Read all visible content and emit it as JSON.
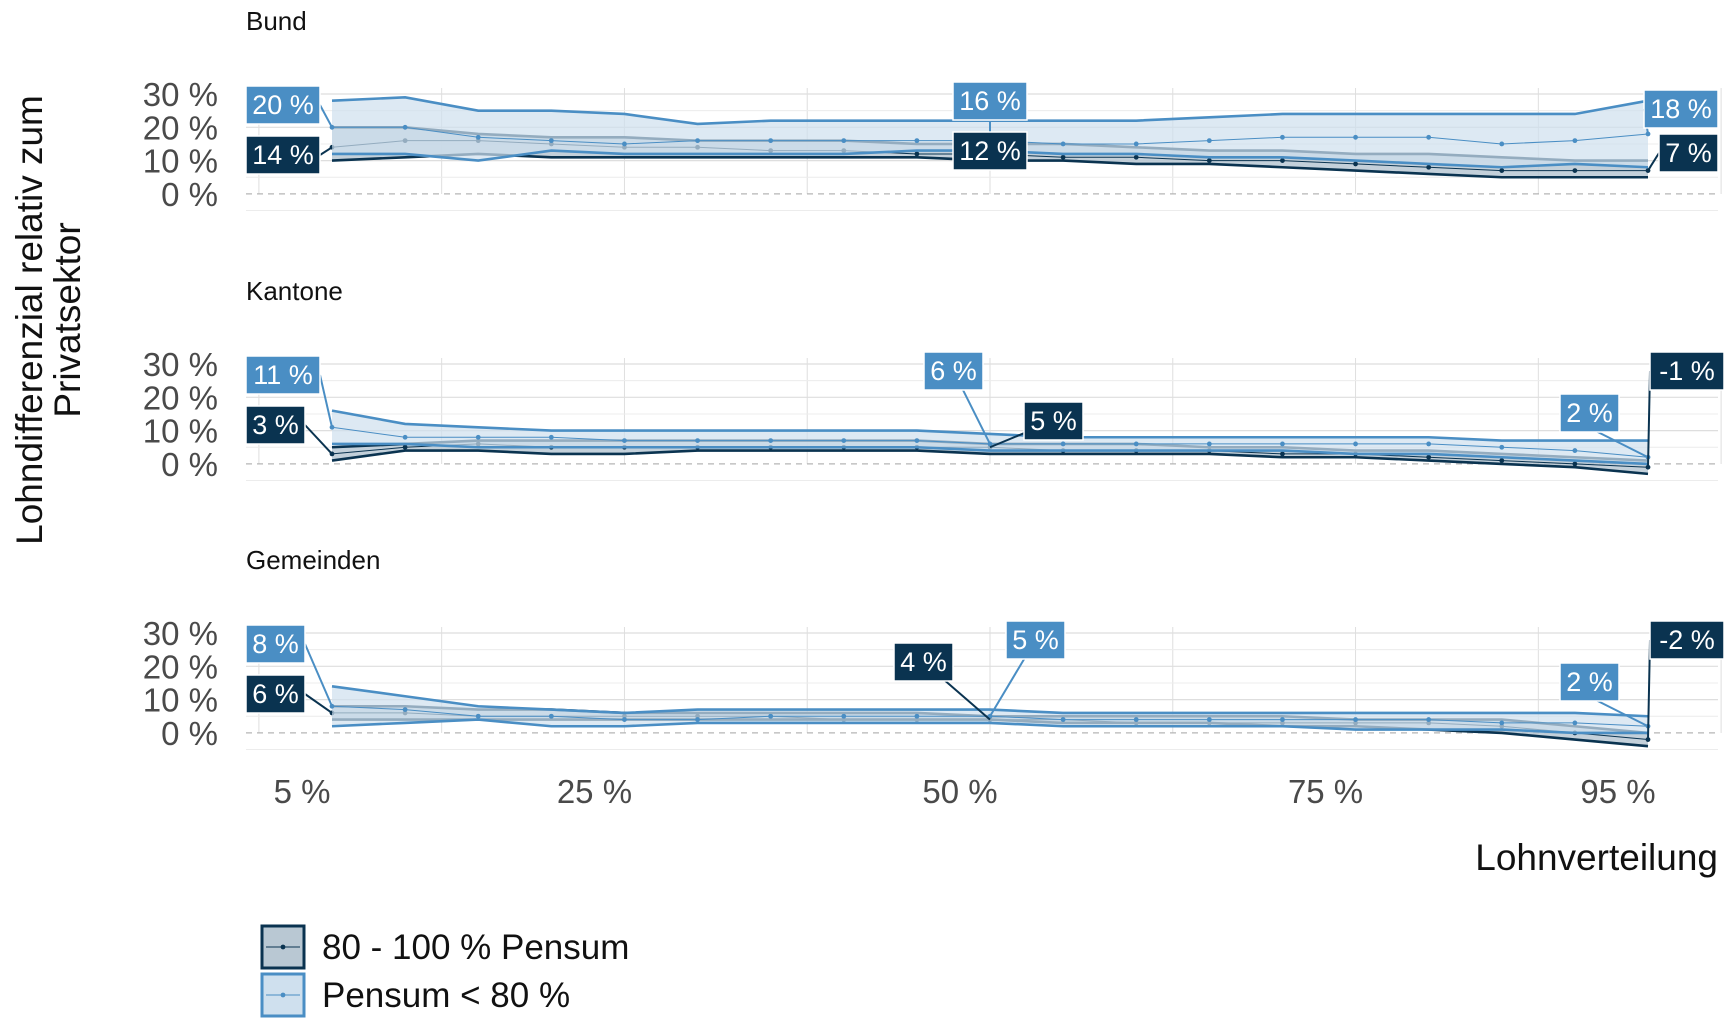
{
  "colors": {
    "full": "#0a3350",
    "full_fill": "#b9c8d3",
    "part": "#4a8ec4",
    "part_fill": "#cfe0ee",
    "grid": "#dedede",
    "zero_line": "#b5b5b5"
  },
  "chart_data": {
    "type": "area",
    "xlabel": "Lohnverteilung",
    "ylabel": "Lohndifferenzial relativ zum Privatsektor",
    "ylabel_lines": [
      "Lohndifferenzial relativ zum",
      "Privatsektor"
    ],
    "x_ticks": [
      5,
      25,
      50,
      75,
      95
    ],
    "x_tick_labels": [
      "5 %",
      "25 %",
      "50 %",
      "75 %",
      "95 %"
    ],
    "x_range": [
      0,
      100
    ],
    "y_ticks": [
      0,
      10,
      20,
      30
    ],
    "y_tick_labels": [
      "0 %",
      "10 %",
      "20 %",
      "30 %"
    ],
    "ylim": [
      -5,
      30
    ],
    "grid": true,
    "legend_position": "bottom-left",
    "legend": [
      {
        "key": "full",
        "label": "80 - 100 % Pensum"
      },
      {
        "key": "part",
        "label": "Pensum < 80 %"
      }
    ],
    "x": [
      5,
      10,
      15,
      20,
      25,
      30,
      35,
      40,
      45,
      50,
      55,
      60,
      65,
      70,
      75,
      80,
      85,
      90,
      95
    ],
    "panels": [
      {
        "title": "Bund",
        "full": {
          "mid": [
            14,
            16,
            16,
            15,
            14,
            14,
            13,
            13,
            12,
            12,
            11,
            11,
            10,
            10,
            9,
            8,
            7,
            7,
            7
          ],
          "lower": [
            10,
            11,
            12,
            11,
            11,
            11,
            11,
            11,
            11,
            10,
            10,
            9,
            9,
            8,
            7,
            6,
            5,
            5,
            5
          ],
          "upper": [
            20,
            20,
            18,
            17,
            17,
            16,
            16,
            16,
            15,
            15,
            15,
            14,
            13,
            13,
            12,
            12,
            11,
            10,
            10
          ]
        },
        "part": {
          "mid": [
            20,
            20,
            17,
            16,
            15,
            16,
            16,
            16,
            16,
            16,
            15,
            15,
            16,
            17,
            17,
            17,
            15,
            16,
            18
          ],
          "lower": [
            12,
            12,
            10,
            13,
            12,
            12,
            12,
            12,
            13,
            13,
            12,
            12,
            11,
            11,
            10,
            9,
            8,
            9,
            8
          ],
          "upper": [
            28,
            29,
            25,
            25,
            24,
            21,
            22,
            22,
            22,
            22,
            22,
            22,
            23,
            24,
            24,
            24,
            24,
            24,
            28
          ]
        },
        "labels": [
          {
            "series": "part",
            "x": 5,
            "text": "20 %",
            "y": 20
          },
          {
            "series": "full",
            "x": 5,
            "text": "14 %",
            "y": 14
          },
          {
            "series": "part",
            "x": 50,
            "text": "16 %",
            "y": 16
          },
          {
            "series": "full",
            "x": 50,
            "text": "12 %",
            "y": 12
          },
          {
            "series": "part",
            "x": 95,
            "text": "18 %",
            "y": 18
          },
          {
            "series": "full",
            "x": 95,
            "text": "7 %",
            "y": 7
          }
        ]
      },
      {
        "title": "Kantone",
        "full": {
          "mid": [
            3,
            5,
            6,
            5,
            5,
            5,
            5,
            5,
            5,
            5,
            4,
            4,
            4,
            3,
            3,
            2,
            1,
            0,
            -1
          ],
          "lower": [
            1,
            4,
            4,
            3,
            3,
            4,
            4,
            4,
            4,
            3,
            3,
            3,
            3,
            2,
            2,
            1,
            0,
            -1,
            -3
          ],
          "upper": [
            5,
            6,
            7,
            7,
            7,
            7,
            7,
            7,
            7,
            6,
            6,
            6,
            5,
            5,
            4,
            4,
            3,
            2,
            1
          ]
        },
        "part": {
          "mid": [
            11,
            8,
            8,
            8,
            7,
            7,
            7,
            7,
            7,
            6,
            6,
            6,
            6,
            6,
            6,
            6,
            5,
            4,
            2
          ],
          "lower": [
            6,
            6,
            5,
            5,
            5,
            5,
            5,
            5,
            5,
            4,
            4,
            4,
            4,
            4,
            3,
            3,
            2,
            1,
            0
          ],
          "upper": [
            16,
            12,
            11,
            10,
            10,
            10,
            10,
            10,
            10,
            9,
            8,
            8,
            8,
            8,
            8,
            8,
            7,
            7,
            7
          ]
        },
        "labels": [
          {
            "series": "part",
            "x": 5,
            "text": "11 %",
            "y": 11
          },
          {
            "series": "full",
            "x": 5,
            "text": "3 %",
            "y": 3
          },
          {
            "series": "part",
            "x": 50,
            "text": "6 %",
            "y": 6
          },
          {
            "series": "full",
            "x": 50,
            "text": "5 %",
            "y": 5
          },
          {
            "series": "part",
            "x": 95,
            "text": "2 %",
            "y": 2
          },
          {
            "series": "full",
            "x": 95,
            "text": "-1 %",
            "y": -1
          }
        ]
      },
      {
        "title": "Gemeinden",
        "full": {
          "mid": [
            6,
            6,
            5,
            5,
            5,
            5,
            5,
            4,
            4,
            4,
            4,
            3,
            3,
            3,
            3,
            3,
            2,
            0,
            -2
          ],
          "lower": [
            4,
            4,
            4,
            4,
            4,
            4,
            4,
            4,
            4,
            4,
            3,
            3,
            3,
            2,
            2,
            1,
            0,
            -2,
            -4
          ],
          "upper": [
            8,
            8,
            7,
            7,
            6,
            6,
            6,
            6,
            6,
            5,
            5,
            5,
            5,
            5,
            4,
            4,
            4,
            2,
            0
          ]
        },
        "part": {
          "mid": [
            8,
            7,
            5,
            5,
            4,
            4,
            5,
            5,
            5,
            5,
            4,
            4,
            4,
            4,
            4,
            4,
            3,
            3,
            2
          ],
          "lower": [
            2,
            3,
            4,
            2,
            2,
            3,
            3,
            3,
            3,
            3,
            2,
            2,
            2,
            2,
            1,
            1,
            1,
            0,
            0
          ],
          "upper": [
            14,
            11,
            8,
            7,
            6,
            7,
            7,
            7,
            7,
            7,
            6,
            6,
            6,
            6,
            6,
            6,
            6,
            6,
            5
          ]
        },
        "labels": [
          {
            "series": "part",
            "x": 5,
            "text": "8 %",
            "y": 8
          },
          {
            "series": "full",
            "x": 5,
            "text": "6 %",
            "y": 6
          },
          {
            "series": "full",
            "x": 50,
            "text": "4 %",
            "y": 4
          },
          {
            "series": "part",
            "x": 50,
            "text": "5 %",
            "y": 5
          },
          {
            "series": "part",
            "x": 95,
            "text": "2 %",
            "y": 2
          },
          {
            "series": "full",
            "x": 95,
            "text": "-2 %",
            "y": -2
          }
        ]
      }
    ]
  }
}
